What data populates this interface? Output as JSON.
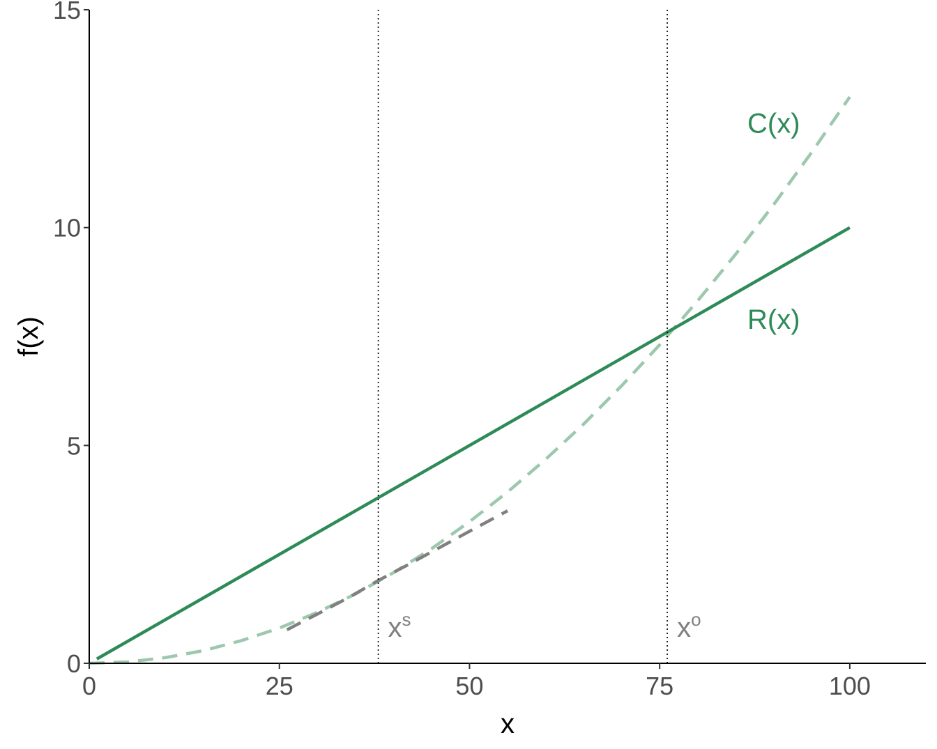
{
  "chart_data": {
    "type": "line",
    "title": "",
    "xlabel": "x",
    "ylabel": "f(x)",
    "xlim": [
      0,
      110
    ],
    "ylim": [
      0,
      15
    ],
    "grid": false,
    "x_ticks": [
      0,
      25,
      50,
      75,
      100
    ],
    "y_ticks": [
      0,
      5,
      10,
      15
    ],
    "x_tick_labels": [
      "0",
      "25",
      "50",
      "75",
      "100"
    ],
    "y_tick_labels": [
      "0",
      "5",
      "10",
      "15"
    ],
    "series": [
      {
        "name": "R(x)",
        "style": "solid",
        "color": "#2e8b57",
        "x": [
          1,
          100
        ],
        "y": [
          0.1,
          10
        ]
      },
      {
        "name": "C(x)",
        "style": "dashed",
        "color": "#9cc8ad",
        "x": [
          0,
          5,
          10,
          15,
          20,
          25,
          30,
          35,
          40,
          45,
          50,
          55,
          60,
          65,
          70,
          75,
          80,
          85,
          90,
          95,
          100
        ],
        "y": [
          0,
          0.03,
          0.13,
          0.29,
          0.52,
          0.81,
          1.17,
          1.59,
          2.08,
          2.63,
          3.25,
          3.93,
          4.68,
          5.49,
          6.37,
          7.31,
          8.32,
          9.39,
          10.53,
          11.73,
          13.0
        ]
      },
      {
        "style": "dashed",
        "color": "#808080",
        "x": [
          26,
          30,
          34,
          38,
          42,
          46,
          50,
          55
        ],
        "y": [
          0.77,
          1.13,
          1.5,
          1.9,
          2.27,
          2.65,
          3.03,
          3.5
        ]
      }
    ],
    "vlines": [
      {
        "x": 38,
        "style": "dotted",
        "label": "x",
        "sup": "s"
      },
      {
        "x": 76,
        "style": "dotted",
        "label": "x",
        "sup": "o"
      }
    ],
    "curve_labels": {
      "cost": "C(x)",
      "revenue": "R(x)"
    }
  }
}
